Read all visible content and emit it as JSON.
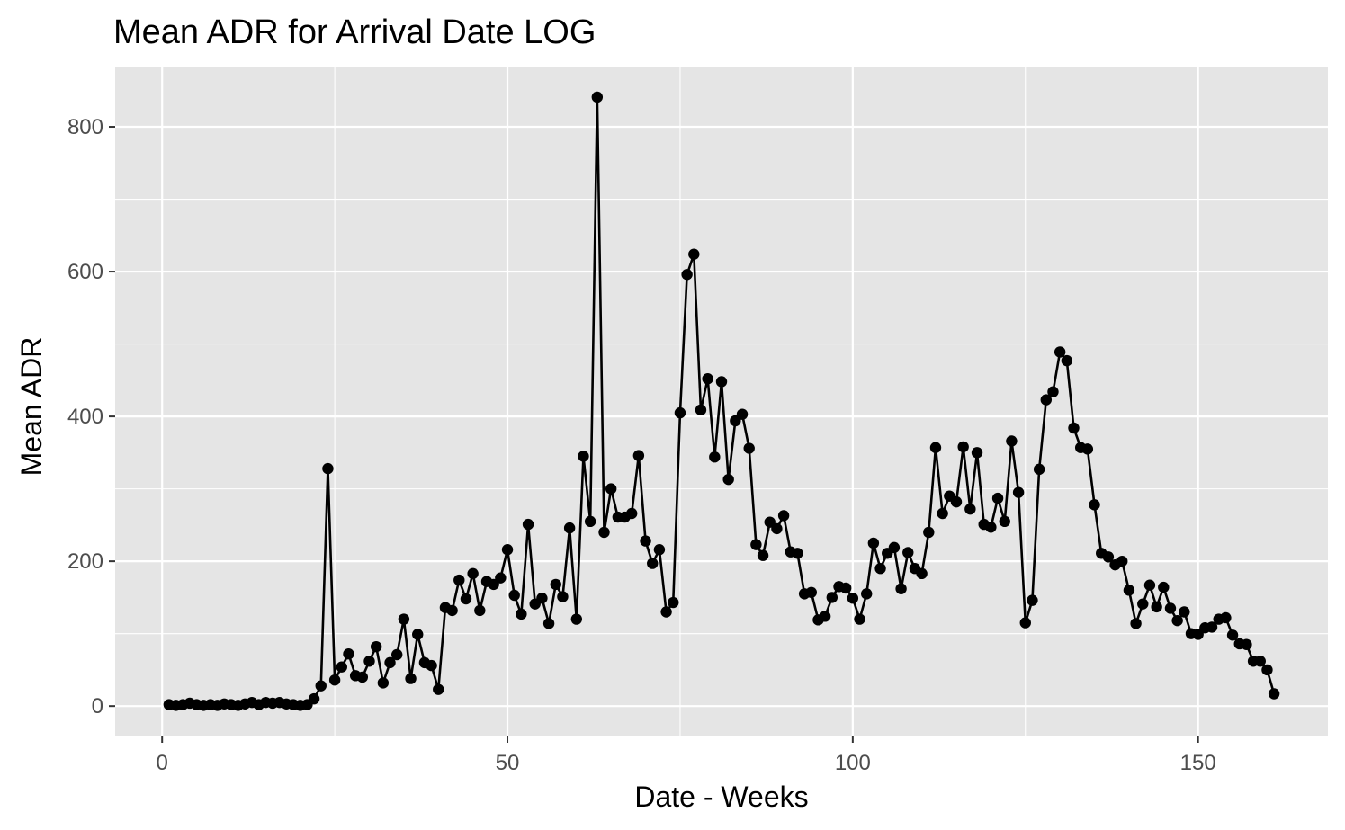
{
  "chart_data": {
    "type": "line",
    "title": "Mean ADR for Arrival Date  LOG",
    "xlabel": "Date - Weeks",
    "ylabel": "Mean ADR",
    "xlim": [
      -6.8,
      168.8
    ],
    "ylim": [
      -42,
      882
    ],
    "xticks": [
      0,
      50,
      100,
      150
    ],
    "xtick_labels": [
      "0",
      "50",
      "100",
      "150"
    ],
    "yticks": [
      0,
      200,
      400,
      600,
      800
    ],
    "ytick_labels": [
      "0",
      "200",
      "400",
      "600",
      "800"
    ],
    "grid": true,
    "legend": "none",
    "colors": {
      "panel": "#e5e5e5",
      "grid": "#ffffff",
      "line": "#000000",
      "point": "#000000",
      "tick": "#4d4d4d"
    },
    "series": [
      {
        "x": [
          1,
          2,
          3,
          4,
          5,
          6,
          7,
          8,
          9,
          10,
          11,
          12,
          13,
          14,
          15,
          16,
          17,
          18,
          19,
          20,
          21,
          22,
          23,
          24,
          25,
          26,
          27,
          28,
          29,
          30,
          31,
          32,
          33,
          34,
          35,
          36,
          37,
          38,
          39,
          40,
          41,
          42,
          43,
          44,
          45,
          46,
          47,
          48,
          49,
          50,
          51,
          52,
          53,
          54,
          55,
          56,
          57,
          58,
          59,
          60,
          61,
          62,
          63,
          64,
          65,
          66,
          67,
          68,
          69,
          70,
          71,
          72,
          73,
          74,
          75,
          76,
          77,
          78,
          79,
          80,
          81,
          82,
          83,
          84,
          85,
          86,
          87,
          88,
          89,
          90,
          91,
          92,
          93,
          94,
          95,
          96,
          97,
          98,
          99,
          100,
          101,
          102,
          103,
          104,
          105,
          106,
          107,
          108,
          109,
          110,
          111,
          112,
          113,
          114,
          115,
          116,
          117,
          118,
          119,
          120,
          121,
          122,
          123,
          124,
          125,
          126,
          127,
          128,
          129,
          130,
          131,
          132,
          133,
          134,
          135,
          136,
          137,
          138,
          139,
          140,
          141,
          142,
          143,
          144,
          145,
          146,
          147,
          148,
          149,
          150,
          151,
          152,
          153,
          154,
          155,
          156,
          157,
          158,
          159,
          160,
          161
        ],
        "y": [
          2,
          1,
          2,
          4,
          2,
          1,
          2,
          1,
          3,
          2,
          1,
          3,
          5,
          2,
          5,
          4,
          5,
          3,
          2,
          1,
          2,
          10,
          28,
          328,
          36,
          54,
          72,
          42,
          40,
          62,
          82,
          32,
          60,
          71,
          120,
          38,
          99,
          60,
          56,
          23,
          136,
          132,
          174,
          148,
          183,
          132,
          172,
          168,
          177,
          216,
          153,
          127,
          251,
          141,
          149,
          114,
          168,
          151,
          246,
          120,
          345,
          255,
          841,
          240,
          300,
          261,
          261,
          266,
          346,
          228,
          197,
          216,
          130,
          143,
          405,
          596,
          624,
          409,
          452,
          344,
          448,
          313,
          394,
          403,
          356,
          223,
          208,
          254,
          245,
          263,
          213,
          211,
          155,
          157,
          119,
          124,
          150,
          165,
          163,
          149,
          120,
          155,
          225,
          190,
          211,
          219,
          162,
          212,
          190,
          183,
          240,
          357,
          266,
          290,
          282,
          358,
          272,
          350,
          251,
          247,
          287,
          255,
          366,
          295,
          115,
          146,
          327,
          423,
          434,
          489,
          477,
          384,
          357,
          355,
          278,
          211,
          206,
          195,
          200,
          160,
          114,
          141,
          167,
          137,
          164,
          135,
          118,
          130,
          100,
          99,
          108,
          109,
          120,
          122,
          98,
          86,
          85,
          62,
          62,
          50,
          17
        ]
      }
    ]
  }
}
